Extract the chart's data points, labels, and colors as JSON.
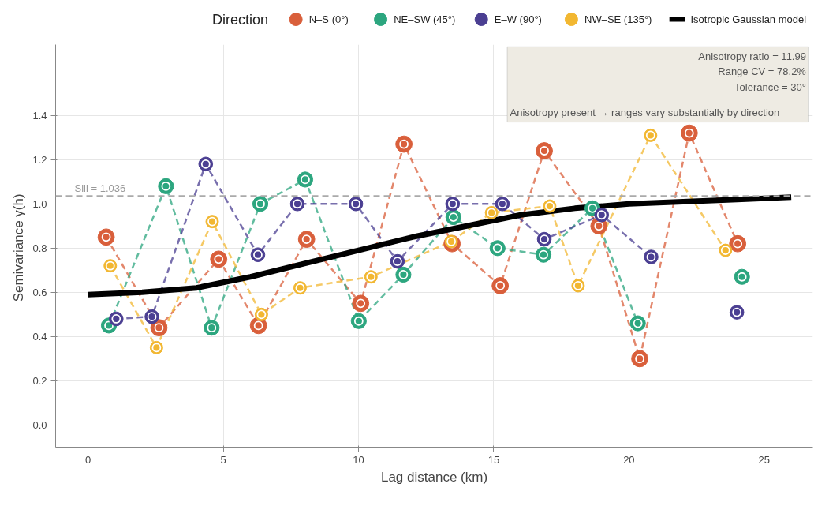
{
  "chart_data": {
    "type": "line",
    "xlabel": "Lag distance (km)",
    "ylabel": "Semivariance  γ(h)",
    "legend_title": "Direction",
    "legend": "top",
    "xlim": [
      -1.2,
      26.8
    ],
    "ylim": [
      -0.1,
      1.72
    ],
    "xticks": [
      0,
      5,
      10,
      15,
      20,
      25
    ],
    "yticks": [
      {
        "value": 0,
        "label": "0.0"
      },
      0.2,
      0.4,
      0.6,
      0.8,
      {
        "value": 1,
        "label": "1.0"
      },
      1.2,
      1.4
    ],
    "grid": true,
    "marker": "circle",
    "line_style": "dashed",
    "series": [
      {
        "name": "N–S (0°)",
        "color": "#d95f3b",
        "x": [
          0.67,
          2.62,
          4.83,
          6.3,
          8.08,
          10.08,
          11.68,
          13.46,
          15.24,
          16.87,
          18.89,
          20.4,
          22.23,
          24.02
        ],
        "values": [
          0.85,
          0.44,
          0.75,
          0.45,
          0.84,
          0.55,
          1.27,
          0.82,
          0.63,
          1.24,
          0.9,
          0.3,
          1.32,
          0.82
        ]
      },
      {
        "name": "NE–SW (45°)",
        "color": "#2ca67f",
        "x": [
          0.77,
          2.88,
          4.57,
          6.37,
          8.03,
          10.01,
          11.66,
          13.51,
          15.14,
          16.84,
          18.65,
          20.33,
          22.2,
          24.18
        ],
        "values": [
          0.45,
          1.08,
          0.44,
          1.0,
          1.11,
          0.47,
          0.68,
          0.94,
          0.8,
          0.77,
          0.98,
          0.46,
          null,
          0.67
        ]
      },
      {
        "name": "E–W (90°)",
        "color": "#4b3f92",
        "x": [
          1.04,
          2.36,
          4.35,
          6.28,
          7.74,
          9.9,
          11.44,
          13.48,
          15.32,
          16.87,
          18.99,
          20.82,
          22.4,
          23.99
        ],
        "values": [
          0.48,
          0.49,
          1.18,
          0.77,
          1.0,
          1.0,
          0.74,
          1.0,
          1.0,
          0.84,
          0.95,
          0.76,
          null,
          0.51
        ]
      },
      {
        "name": "NW–SE (135°)",
        "color": "#f2b731",
        "x": [
          0.82,
          2.53,
          4.59,
          6.41,
          7.84,
          10.46,
          13.43,
          14.92,
          17.07,
          18.12,
          20.8,
          23.57
        ],
        "values": [
          0.72,
          0.35,
          0.92,
          0.5,
          0.62,
          0.67,
          0.83,
          0.96,
          0.99,
          0.63,
          1.31,
          0.79
        ]
      },
      {
        "name": "Isotropic Gaussian model",
        "color": "#000000",
        "marker": "none",
        "line_style": "solid",
        "x": [
          0,
          2,
          4,
          6,
          8,
          10,
          12,
          14,
          16,
          18,
          20,
          22,
          24,
          26
        ],
        "values": [
          0.59,
          0.6,
          0.62,
          0.67,
          0.73,
          0.79,
          0.85,
          0.9,
          0.95,
          0.98,
          1.0,
          1.01,
          1.02,
          1.03
        ]
      }
    ],
    "ref_lines": [
      {
        "axis": "y",
        "value": 1.036,
        "label": "Sill = 1.036",
        "color": "#aaaaaa",
        "line_style": "dashed"
      }
    ],
    "annotations": [
      "Anisotropy ratio = 11.99",
      "Range CV = 78.2%",
      "Tolerance = 30°",
      "Anisotropy present → ranges vary substantially by direction"
    ]
  }
}
